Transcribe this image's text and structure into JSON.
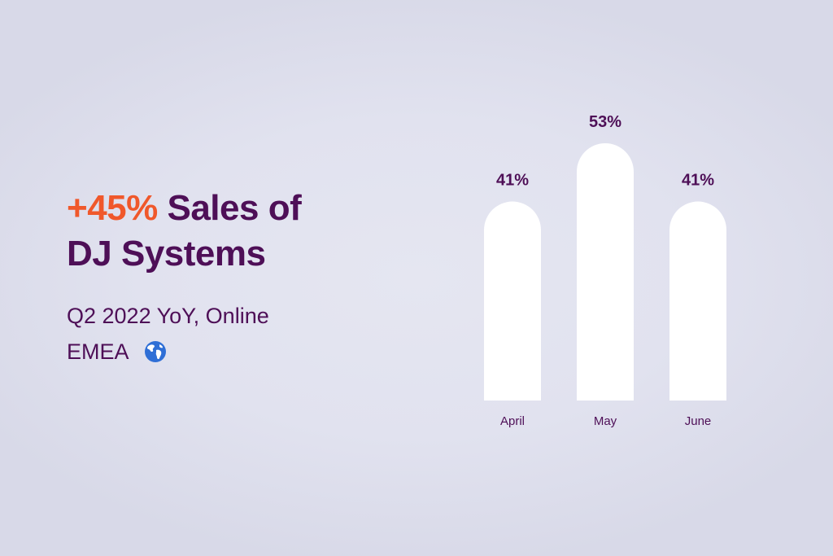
{
  "headline": {
    "accent": "+45%",
    "line1_rest": " Sales of",
    "line2": "DJ Systems"
  },
  "subtitle": {
    "period": "Q2 2022 YoY, Online",
    "region": "EMEA"
  },
  "icons": {
    "region_icon": "globe-icon"
  },
  "colors": {
    "text": "#4e0f57",
    "accent": "#f0582b",
    "bar": "#ffffff",
    "background": "#dadbea"
  },
  "chart_data": {
    "type": "bar",
    "categories": [
      "April",
      "May",
      "June"
    ],
    "values": [
      41,
      53,
      41
    ],
    "value_labels": [
      "41%",
      "53%",
      "41%"
    ],
    "unit": "%",
    "ylim": [
      0,
      53
    ],
    "grid": false,
    "legend": "none"
  }
}
